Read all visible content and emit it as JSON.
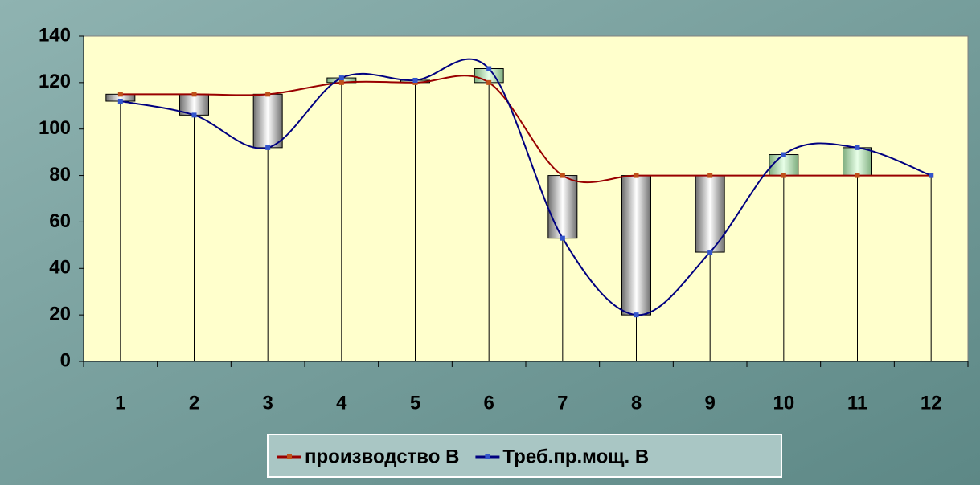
{
  "chart_data": {
    "type": "line",
    "categories": [
      "1",
      "2",
      "3",
      "4",
      "5",
      "6",
      "7",
      "8",
      "9",
      "10",
      "11",
      "12"
    ],
    "series": [
      {
        "name": "производство B",
        "color": "#990000",
        "marker_color": "#c0501a",
        "values": [
          115,
          115,
          115,
          120,
          120,
          120,
          80,
          80,
          80,
          80,
          80,
          80
        ]
      },
      {
        "name": "Треб.пр.мощ. B",
        "color": "#000080",
        "marker_color": "#3355cc",
        "values": [
          112,
          106,
          92,
          122,
          121,
          126,
          53,
          20,
          47,
          89,
          92,
          80
        ]
      }
    ],
    "ylim": [
      0,
      140
    ],
    "yticks": [
      0,
      20,
      40,
      60,
      80,
      100,
      120,
      140
    ],
    "smooth": true,
    "drop_lines": true,
    "up_down_bars": true,
    "up_bar_color": "#b8e6b8",
    "down_bar_color": "#9a9a9a",
    "plot_background": "#ffffcc",
    "legend": "bottom"
  }
}
